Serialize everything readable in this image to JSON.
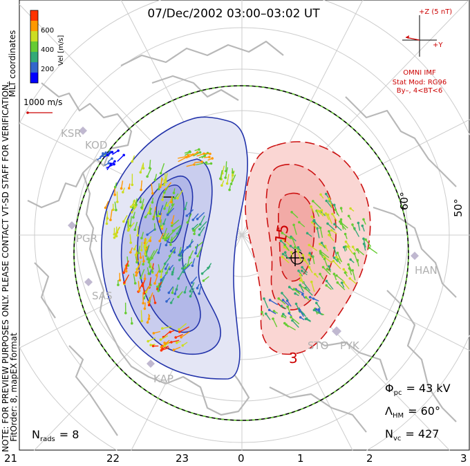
{
  "title": "07/Dec/2002 03:00–03:02 UT",
  "colorbar": {
    "label": "Vel [m/s]",
    "ticks": [
      "600",
      "400",
      "200"
    ],
    "colors": [
      "#0000ff",
      "#3366cc",
      "#33aa77",
      "#66cc33",
      "#ccdd22",
      "#ff9900",
      "#ff3300"
    ]
  },
  "coordinate_label": "MLT coordinates",
  "scale_label": "1000 m/s",
  "watermark": "NOTE: FOR PREVIEW PURPOSES ONLY. PLEASE CONTACT VT-SD STAFF FOR VERIFICATION.",
  "fit_info": "FitOrder: 8, mapEX format",
  "imf": {
    "z_label": "+Z (5 nT)",
    "y_label": "+Y",
    "source": "OMNI IMF",
    "model_line1": "Stat Mod: RG96",
    "model_line2": "By–, 4<BT<6"
  },
  "latitude_labels": [
    "60°",
    "50°"
  ],
  "mlt_labels": [
    "21",
    "22",
    "23",
    "0",
    "1",
    "2",
    "3"
  ],
  "stations": [
    "KSR",
    "KOD",
    "PGR",
    "SAS",
    "KAP",
    "STO",
    "PYK",
    "HAN"
  ],
  "potential_labels": [
    "15",
    "3"
  ],
  "stats": {
    "phi_sym": "Φ",
    "phi_sub": "pc",
    "phi_val": "= 43 kV",
    "lam_sym": "Λ",
    "lam_sub": "HM",
    "lam_val": "= 60°",
    "nvc_sym": "N",
    "nvc_sub": "vc",
    "nvc_val": "= 427",
    "nrads_sym": "N",
    "nrads_sub": "rads",
    "nrads_val": "= 8"
  }
}
